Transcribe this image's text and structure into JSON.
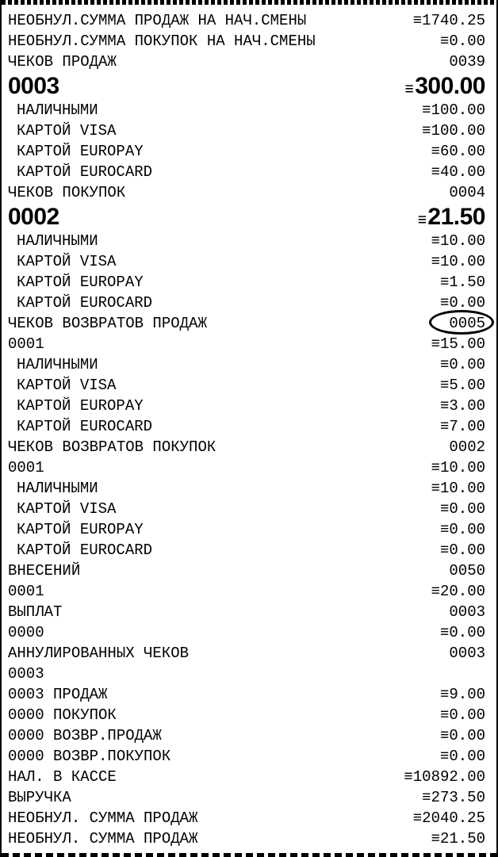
{
  "colors": {
    "text": "#000000",
    "background": "#ffffff",
    "border": "#000000"
  },
  "receipt": {
    "sum_symbol": "≡",
    "rows": [
      {
        "label": "НЕОБНУЛ.СУММА ПРОДАЖ НА НАЧ.СМЕНЫ",
        "value": "≡1740.25"
      },
      {
        "label": "НЕОБНУЛ.СУММА ПОКУПОК НА НАЧ.СМЕНЫ",
        "value": "≡0.00"
      },
      {
        "label": "ЧЕКОВ ПРОДАЖ",
        "value": "0039"
      },
      {
        "label": "0003",
        "value": "≡300.00",
        "bold": true
      },
      {
        "label": "НАЛИЧНЫМИ",
        "value": "≡100.00",
        "indent": true
      },
      {
        "label": "КАРТОЙ VISA",
        "value": "≡100.00",
        "indent": true
      },
      {
        "label": "КАРТОЙ EUROPAY",
        "value": "≡60.00",
        "indent": true
      },
      {
        "label": "КАРТОЙ EUROCARD",
        "value": "≡40.00",
        "indent": true
      },
      {
        "label": "ЧЕКОВ ПОКУПОК",
        "value": "0004"
      },
      {
        "label": "0002",
        "value": "≡21.50",
        "bold": true
      },
      {
        "label": "НАЛИЧНЫМИ",
        "value": "≡10.00",
        "indent": true
      },
      {
        "label": "КАРТОЙ VISA",
        "value": "≡10.00",
        "indent": true
      },
      {
        "label": "КАРТОЙ EUROPAY",
        "value": "≡1.50",
        "indent": true
      },
      {
        "label": "КАРТОЙ EUROCARD",
        "value": "≡0.00",
        "indent": true
      },
      {
        "label": "ЧЕКОВ ВОЗВРАТОВ ПРОДАЖ",
        "value": "0005",
        "circle": "solid",
        "circle_target": "value"
      },
      {
        "label": "0001",
        "value": "≡15.00",
        "circle": "dotted",
        "circle_target": "label"
      },
      {
        "label": "НАЛИЧНЫМИ",
        "value": "≡0.00",
        "indent": true
      },
      {
        "label": "КАРТОЙ VISA",
        "value": "≡5.00",
        "indent": true
      },
      {
        "label": "КАРТОЙ EUROPAY",
        "value": "≡3.00",
        "indent": true
      },
      {
        "label": "КАРТОЙ EUROCARD",
        "value": "≡7.00",
        "indent": true
      },
      {
        "label": "ЧЕКОВ ВОЗВРАТОВ ПОКУПОК",
        "value": "0002"
      },
      {
        "label": "0001",
        "value": "≡10.00"
      },
      {
        "label": "НАЛИЧНЫМИ",
        "value": "≡10.00",
        "indent": true
      },
      {
        "label": "КАРТОЙ VISA",
        "value": "≡0.00",
        "indent": true
      },
      {
        "label": "КАРТОЙ EUROPAY",
        "value": "≡0.00",
        "indent": true
      },
      {
        "label": "КАРТОЙ EUROCARD",
        "value": "≡0.00",
        "indent": true
      },
      {
        "label": "ВНЕСЕНИЙ",
        "value": "0050"
      },
      {
        "label": "0001",
        "value": "≡20.00"
      },
      {
        "label": "ВЫПЛАТ",
        "value": "0003"
      },
      {
        "label": "0000",
        "value": "≡0.00"
      },
      {
        "label": "АННУЛИРОВАННЫХ ЧЕКОВ",
        "value": "0003"
      },
      {
        "label": "0003",
        "value": ""
      },
      {
        "label": "0003 ПРОДАЖ",
        "value": "≡9.00"
      },
      {
        "label": "0000 ПОКУПОК",
        "value": "≡0.00"
      },
      {
        "label": "0000 ВОЗВР.ПРОДАЖ",
        "value": "≡0.00"
      },
      {
        "label": "0000 ВОЗВР.ПОКУПОК",
        "value": "≡0.00"
      },
      {
        "label": "НАЛ. В КАССЕ",
        "value": "≡10892.00"
      },
      {
        "label": "ВЫРУЧКА",
        "value": "≡273.50"
      },
      {
        "label": "НЕОБНУЛ. СУММА ПРОДАЖ",
        "value": "≡2040.25"
      },
      {
        "label": "НЕОБНУЛ. СУММА ПРОДАЖ",
        "value": "≡21.50"
      }
    ]
  }
}
